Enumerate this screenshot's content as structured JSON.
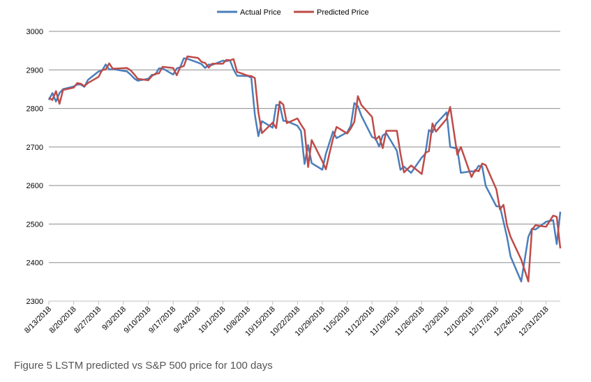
{
  "caption": "Figure 5 LSTM predicted vs S&P 500 price for 100 days",
  "chart_data": {
    "type": "line",
    "title": "",
    "xlabel": "",
    "ylabel": "",
    "ylim": [
      2300,
      3000
    ],
    "yticks": [
      2300,
      2400,
      2500,
      2600,
      2700,
      2800,
      2900,
      3000
    ],
    "grid": "horizontal",
    "legend_position": "top",
    "xlim": [
      "2018-08-13",
      "2019-01-04"
    ],
    "xticks": [
      {
        "label": "8/13/2018",
        "date": "2018-08-13"
      },
      {
        "label": "8/20/2018",
        "date": "2018-08-20"
      },
      {
        "label": "8/27/2018",
        "date": "2018-08-27"
      },
      {
        "label": "9/3/2018",
        "date": "2018-09-03"
      },
      {
        "label": "9/10/2018",
        "date": "2018-09-10"
      },
      {
        "label": "9/17/2018",
        "date": "2018-09-17"
      },
      {
        "label": "9/24/2018",
        "date": "2018-09-24"
      },
      {
        "label": "10/1/2018",
        "date": "2018-10-01"
      },
      {
        "label": "10/8/2018",
        "date": "2018-10-08"
      },
      {
        "label": "10/15/2018",
        "date": "2018-10-15"
      },
      {
        "label": "10/22/2018",
        "date": "2018-10-22"
      },
      {
        "label": "10/29/2018",
        "date": "2018-10-29"
      },
      {
        "label": "11/5/2018",
        "date": "2018-11-05"
      },
      {
        "label": "11/12/2018",
        "date": "2018-11-12"
      },
      {
        "label": "11/19/2018",
        "date": "2018-11-19"
      },
      {
        "label": "11/26/2018",
        "date": "2018-11-26"
      },
      {
        "label": "12/3/2018",
        "date": "2018-12-03"
      },
      {
        "label": "12/10/2018",
        "date": "2018-12-10"
      },
      {
        "label": "12/17/2018",
        "date": "2018-12-17"
      },
      {
        "label": "12/24/2018",
        "date": "2018-12-24"
      },
      {
        "label": "12/31/2018",
        "date": "2018-12-31"
      }
    ],
    "series": [
      {
        "name": "Actual Price",
        "color": "#4a7ebb",
        "points": [
          [
            "2018-08-13",
            2822
          ],
          [
            "2018-08-14",
            2840
          ],
          [
            "2018-08-15",
            2818
          ],
          [
            "2018-08-16",
            2840
          ],
          [
            "2018-08-17",
            2850
          ],
          [
            "2018-08-20",
            2857
          ],
          [
            "2018-08-21",
            2862
          ],
          [
            "2018-08-22",
            2862
          ],
          [
            "2018-08-23",
            2856
          ],
          [
            "2018-08-24",
            2874
          ],
          [
            "2018-08-27",
            2896
          ],
          [
            "2018-08-28",
            2898
          ],
          [
            "2018-08-29",
            2914
          ],
          [
            "2018-08-30",
            2901
          ],
          [
            "2018-08-31",
            2902
          ],
          [
            "2018-09-04",
            2896
          ],
          [
            "2018-09-05",
            2888
          ],
          [
            "2018-09-06",
            2878
          ],
          [
            "2018-09-07",
            2872
          ],
          [
            "2018-09-10",
            2877
          ],
          [
            "2018-09-11",
            2887
          ],
          [
            "2018-09-12",
            2888
          ],
          [
            "2018-09-13",
            2904
          ],
          [
            "2018-09-14",
            2904
          ],
          [
            "2018-09-17",
            2888
          ],
          [
            "2018-09-18",
            2904
          ],
          [
            "2018-09-19",
            2907
          ],
          [
            "2018-09-20",
            2930
          ],
          [
            "2018-09-21",
            2929
          ],
          [
            "2018-09-24",
            2919
          ],
          [
            "2018-09-25",
            2915
          ],
          [
            "2018-09-26",
            2905
          ],
          [
            "2018-09-27",
            2914
          ],
          [
            "2018-09-28",
            2913
          ],
          [
            "2018-10-01",
            2924
          ],
          [
            "2018-10-02",
            2923
          ],
          [
            "2018-10-03",
            2925
          ],
          [
            "2018-10-04",
            2901
          ],
          [
            "2018-10-05",
            2885
          ],
          [
            "2018-10-08",
            2884
          ],
          [
            "2018-10-09",
            2880
          ],
          [
            "2018-10-10",
            2785
          ],
          [
            "2018-10-11",
            2728
          ],
          [
            "2018-10-12",
            2767
          ],
          [
            "2018-10-15",
            2750
          ],
          [
            "2018-10-16",
            2809
          ],
          [
            "2018-10-17",
            2809
          ],
          [
            "2018-10-18",
            2768
          ],
          [
            "2018-10-19",
            2767
          ],
          [
            "2018-10-22",
            2755
          ],
          [
            "2018-10-23",
            2741
          ],
          [
            "2018-10-24",
            2656
          ],
          [
            "2018-10-25",
            2705
          ],
          [
            "2018-10-26",
            2658
          ],
          [
            "2018-10-29",
            2641
          ],
          [
            "2018-10-30",
            2682
          ],
          [
            "2018-10-31",
            2711
          ],
          [
            "2018-11-01",
            2740
          ],
          [
            "2018-11-02",
            2723
          ],
          [
            "2018-11-05",
            2738
          ],
          [
            "2018-11-06",
            2755
          ],
          [
            "2018-11-07",
            2814
          ],
          [
            "2018-11-08",
            2806
          ],
          [
            "2018-11-09",
            2781
          ],
          [
            "2018-11-12",
            2726
          ],
          [
            "2018-11-13",
            2722
          ],
          [
            "2018-11-14",
            2701
          ],
          [
            "2018-11-15",
            2730
          ],
          [
            "2018-11-16",
            2736
          ],
          [
            "2018-11-19",
            2690
          ],
          [
            "2018-11-20",
            2641
          ],
          [
            "2018-11-21",
            2649
          ],
          [
            "2018-11-23",
            2633
          ],
          [
            "2018-11-26",
            2673
          ],
          [
            "2018-11-27",
            2682
          ],
          [
            "2018-11-28",
            2744
          ],
          [
            "2018-11-29",
            2738
          ],
          [
            "2018-11-30",
            2760
          ],
          [
            "2018-12-03",
            2790
          ],
          [
            "2018-12-04",
            2700
          ],
          [
            "2018-12-06",
            2696
          ],
          [
            "2018-12-07",
            2633
          ],
          [
            "2018-12-10",
            2637
          ],
          [
            "2018-12-11",
            2636
          ],
          [
            "2018-12-12",
            2651
          ],
          [
            "2018-12-13",
            2650
          ],
          [
            "2018-12-14",
            2599
          ],
          [
            "2018-12-17",
            2546
          ],
          [
            "2018-12-18",
            2546
          ],
          [
            "2018-12-19",
            2506
          ],
          [
            "2018-12-20",
            2467
          ],
          [
            "2018-12-21",
            2416
          ],
          [
            "2018-12-24",
            2351
          ],
          [
            "2018-12-26",
            2467
          ],
          [
            "2018-12-27",
            2488
          ],
          [
            "2018-12-28",
            2486
          ],
          [
            "2018-12-31",
            2506
          ],
          [
            "2019-01-02",
            2510
          ],
          [
            "2019-01-03",
            2448
          ],
          [
            "2019-01-04",
            2532
          ]
        ]
      },
      {
        "name": "Predicted Price",
        "color": "#be4b48",
        "points": [
          [
            "2018-08-13",
            2828
          ],
          [
            "2018-08-14",
            2822
          ],
          [
            "2018-08-15",
            2845
          ],
          [
            "2018-08-16",
            2812
          ],
          [
            "2018-08-17",
            2848
          ],
          [
            "2018-08-20",
            2854
          ],
          [
            "2018-08-21",
            2866
          ],
          [
            "2018-08-22",
            2864
          ],
          [
            "2018-08-23",
            2858
          ],
          [
            "2018-08-24",
            2866
          ],
          [
            "2018-08-27",
            2882
          ],
          [
            "2018-08-28",
            2900
          ],
          [
            "2018-08-29",
            2901
          ],
          [
            "2018-08-30",
            2917
          ],
          [
            "2018-08-31",
            2903
          ],
          [
            "2018-09-04",
            2905
          ],
          [
            "2018-09-05",
            2899
          ],
          [
            "2018-09-06",
            2889
          ],
          [
            "2018-09-07",
            2877
          ],
          [
            "2018-09-10",
            2873
          ],
          [
            "2018-09-11",
            2884
          ],
          [
            "2018-09-12",
            2890
          ],
          [
            "2018-09-13",
            2891
          ],
          [
            "2018-09-14",
            2908
          ],
          [
            "2018-09-17",
            2905
          ],
          [
            "2018-09-18",
            2886
          ],
          [
            "2018-09-19",
            2907
          ],
          [
            "2018-09-20",
            2910
          ],
          [
            "2018-09-21",
            2935
          ],
          [
            "2018-09-24",
            2931
          ],
          [
            "2018-09-25",
            2921
          ],
          [
            "2018-09-26",
            2918
          ],
          [
            "2018-09-27",
            2906
          ],
          [
            "2018-09-28",
            2916
          ],
          [
            "2018-10-01",
            2916
          ],
          [
            "2018-10-02",
            2926
          ],
          [
            "2018-10-03",
            2925
          ],
          [
            "2018-10-04",
            2928
          ],
          [
            "2018-10-05",
            2895
          ],
          [
            "2018-10-08",
            2885
          ],
          [
            "2018-10-09",
            2884
          ],
          [
            "2018-10-10",
            2879
          ],
          [
            "2018-10-11",
            2790
          ],
          [
            "2018-10-12",
            2736
          ],
          [
            "2018-10-15",
            2763
          ],
          [
            "2018-10-16",
            2749
          ],
          [
            "2018-10-17",
            2818
          ],
          [
            "2018-10-18",
            2810
          ],
          [
            "2018-10-19",
            2762
          ],
          [
            "2018-10-22",
            2774
          ],
          [
            "2018-10-23",
            2758
          ],
          [
            "2018-10-24",
            2744
          ],
          [
            "2018-10-25",
            2648
          ],
          [
            "2018-10-26",
            2718
          ],
          [
            "2018-10-29",
            2663
          ],
          [
            "2018-10-30",
            2642
          ],
          [
            "2018-10-31",
            2683
          ],
          [
            "2018-11-01",
            2721
          ],
          [
            "2018-11-02",
            2752
          ],
          [
            "2018-11-05",
            2735
          ],
          [
            "2018-11-06",
            2748
          ],
          [
            "2018-11-07",
            2765
          ],
          [
            "2018-11-08",
            2832
          ],
          [
            "2018-11-09",
            2809
          ],
          [
            "2018-11-12",
            2778
          ],
          [
            "2018-11-13",
            2719
          ],
          [
            "2018-11-14",
            2728
          ],
          [
            "2018-11-15",
            2697
          ],
          [
            "2018-11-16",
            2742
          ],
          [
            "2018-11-19",
            2742
          ],
          [
            "2018-11-20",
            2683
          ],
          [
            "2018-11-21",
            2634
          ],
          [
            "2018-11-23",
            2652
          ],
          [
            "2018-11-26",
            2630
          ],
          [
            "2018-11-27",
            2685
          ],
          [
            "2018-11-28",
            2689
          ],
          [
            "2018-11-29",
            2761
          ],
          [
            "2018-11-30",
            2740
          ],
          [
            "2018-12-03",
            2773
          ],
          [
            "2018-12-04",
            2804
          ],
          [
            "2018-12-06",
            2680
          ],
          [
            "2018-12-07",
            2700
          ],
          [
            "2018-12-10",
            2622
          ],
          [
            "2018-12-11",
            2640
          ],
          [
            "2018-12-12",
            2637
          ],
          [
            "2018-12-13",
            2657
          ],
          [
            "2018-12-14",
            2653
          ],
          [
            "2018-12-17",
            2590
          ],
          [
            "2018-12-18",
            2538
          ],
          [
            "2018-12-19",
            2550
          ],
          [
            "2018-12-20",
            2497
          ],
          [
            "2018-12-21",
            2467
          ],
          [
            "2018-12-24",
            2408
          ],
          [
            "2018-12-26",
            2351
          ],
          [
            "2018-12-27",
            2485
          ],
          [
            "2018-12-28",
            2497
          ],
          [
            "2018-12-31",
            2493
          ],
          [
            "2019-01-02",
            2522
          ],
          [
            "2019-01-03",
            2519
          ],
          [
            "2019-01-04",
            2437
          ]
        ]
      }
    ]
  }
}
